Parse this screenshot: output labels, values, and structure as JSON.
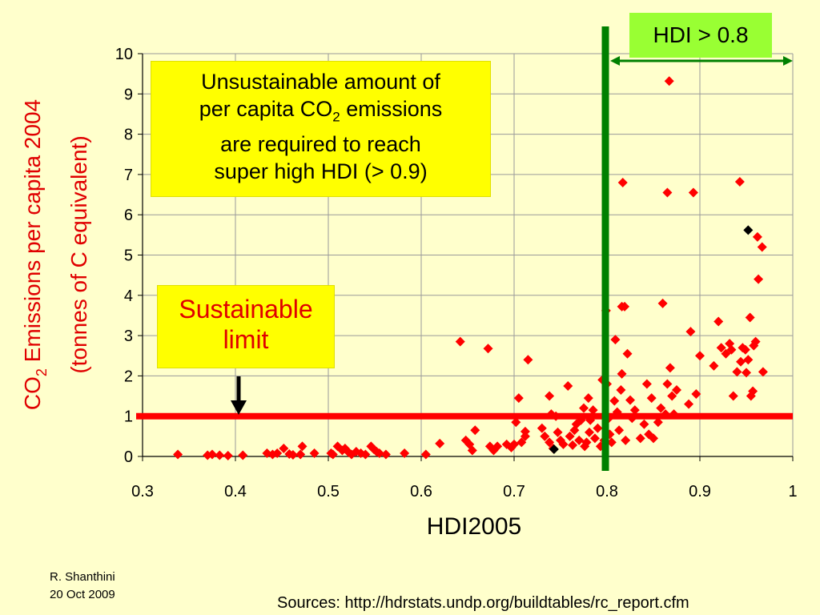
{
  "chart_data": {
    "type": "scatter",
    "title": "",
    "xlabel": "HDI2005",
    "ylabel_line1_main": "CO",
    "ylabel_line1_sub": "2",
    "ylabel_line1_rest": " Emissions per capita 2004",
    "ylabel_line2": "(tonnes of C equivalent)",
    "xlim": [
      0.3,
      1.0
    ],
    "ylim": [
      0,
      10
    ],
    "xticks": [
      "0.3",
      "0.4",
      "0.5",
      "0.6",
      "0.7",
      "0.8",
      "0.9",
      "1"
    ],
    "yticks": [
      "0",
      "1",
      "2",
      "3",
      "4",
      "5",
      "6",
      "7",
      "8",
      "9",
      "10"
    ],
    "grid": true,
    "colors": {
      "points": "#ff0000",
      "highlight": "#000000",
      "limit_line": "#ff0000",
      "hdi_line": "#008000",
      "arrow": "#008000"
    },
    "sustainable_limit": 1.0,
    "hdi_threshold": 0.8,
    "points": [
      [
        0.338,
        0.05
      ],
      [
        0.37,
        0.03
      ],
      [
        0.375,
        0.05
      ],
      [
        0.383,
        0.03
      ],
      [
        0.392,
        0.02
      ],
      [
        0.408,
        0.03
      ],
      [
        0.434,
        0.08
      ],
      [
        0.44,
        0.05
      ],
      [
        0.445,
        0.08
      ],
      [
        0.452,
        0.2
      ],
      [
        0.458,
        0.06
      ],
      [
        0.462,
        0.04
      ],
      [
        0.47,
        0.05
      ],
      [
        0.472,
        0.25
      ],
      [
        0.485,
        0.08
      ],
      [
        0.503,
        0.08
      ],
      [
        0.505,
        0.05
      ],
      [
        0.51,
        0.25
      ],
      [
        0.515,
        0.15
      ],
      [
        0.518,
        0.2
      ],
      [
        0.522,
        0.1
      ],
      [
        0.525,
        0.05
      ],
      [
        0.53,
        0.12
      ],
      [
        0.535,
        0.08
      ],
      [
        0.54,
        0.05
      ],
      [
        0.546,
        0.25
      ],
      [
        0.549,
        0.18
      ],
      [
        0.552,
        0.12
      ],
      [
        0.555,
        0.08
      ],
      [
        0.562,
        0.05
      ],
      [
        0.582,
        0.08
      ],
      [
        0.605,
        0.05
      ],
      [
        0.62,
        0.32
      ],
      [
        0.642,
        2.85
      ],
      [
        0.648,
        0.4
      ],
      [
        0.652,
        0.3
      ],
      [
        0.655,
        0.15
      ],
      [
        0.658,
        0.65
      ],
      [
        0.672,
        2.68
      ],
      [
        0.674,
        0.25
      ],
      [
        0.678,
        0.15
      ],
      [
        0.682,
        0.25
      ],
      [
        0.692,
        0.3
      ],
      [
        0.697,
        0.22
      ],
      [
        0.7,
        0.3
      ],
      [
        0.702,
        0.85
      ],
      [
        0.705,
        1.45
      ],
      [
        0.708,
        0.35
      ],
      [
        0.712,
        0.5
      ],
      [
        0.712,
        0.62
      ],
      [
        0.715,
        2.4
      ],
      [
        0.73,
        0.7
      ],
      [
        0.733,
        0.5
      ],
      [
        0.738,
        1.5
      ],
      [
        0.738,
        0.35
      ],
      [
        0.74,
        1.05
      ],
      [
        0.742,
        0.2
      ],
      [
        0.745,
        1.0
      ],
      [
        0.747,
        0.6
      ],
      [
        0.75,
        0.4
      ],
      [
        0.753,
        0.3
      ],
      [
        0.758,
        1.75
      ],
      [
        0.76,
        0.5
      ],
      [
        0.763,
        0.28
      ],
      [
        0.765,
        0.65
      ],
      [
        0.767,
        0.8
      ],
      [
        0.77,
        0.4
      ],
      [
        0.772,
        0.9
      ],
      [
        0.775,
        1.2
      ],
      [
        0.776,
        0.25
      ],
      [
        0.778,
        0.35
      ],
      [
        0.78,
        1.45
      ],
      [
        0.781,
        0.6
      ],
      [
        0.782,
        0.9
      ],
      [
        0.785,
        1.15
      ],
      [
        0.787,
        0.45
      ],
      [
        0.79,
        0.7
      ],
      [
        0.793,
        0.25
      ],
      [
        0.795,
        1.9
      ],
      [
        0.797,
        0.4
      ],
      [
        0.799,
        3.62
      ],
      [
        0.8,
        1.8
      ],
      [
        0.802,
        0.95
      ],
      [
        0.803,
        0.55
      ],
      [
        0.805,
        0.35
      ],
      [
        0.808,
        1.38
      ],
      [
        0.809,
        2.9
      ],
      [
        0.811,
        1.1
      ],
      [
        0.813,
        0.65
      ],
      [
        0.815,
        1.65
      ],
      [
        0.816,
        2.05
      ],
      [
        0.816,
        3.72
      ],
      [
        0.817,
        6.8
      ],
      [
        0.819,
        3.72
      ],
      [
        0.82,
        0.4
      ],
      [
        0.822,
        2.55
      ],
      [
        0.825,
        1.4
      ],
      [
        0.827,
        0.95
      ],
      [
        0.83,
        1.15
      ],
      [
        0.836,
        0.45
      ],
      [
        0.84,
        0.8
      ],
      [
        0.843,
        1.8
      ],
      [
        0.845,
        0.55
      ],
      [
        0.848,
        1.45
      ],
      [
        0.85,
        0.45
      ],
      [
        0.855,
        0.85
      ],
      [
        0.858,
        1.2
      ],
      [
        0.86,
        3.8
      ],
      [
        0.863,
        1.05
      ],
      [
        0.865,
        6.55
      ],
      [
        0.865,
        1.8
      ],
      [
        0.867,
        9.32
      ],
      [
        0.868,
        2.2
      ],
      [
        0.87,
        1.5
      ],
      [
        0.872,
        1.05
      ],
      [
        0.875,
        1.65
      ],
      [
        0.888,
        1.3
      ],
      [
        0.89,
        3.1
      ],
      [
        0.893,
        6.55
      ],
      [
        0.896,
        1.55
      ],
      [
        0.9,
        2.5
      ],
      [
        0.915,
        2.25
      ],
      [
        0.92,
        3.35
      ],
      [
        0.923,
        2.7
      ],
      [
        0.928,
        2.55
      ],
      [
        0.932,
        2.8
      ],
      [
        0.934,
        2.65
      ],
      [
        0.936,
        1.5
      ],
      [
        0.94,
        2.1
      ],
      [
        0.943,
        6.82
      ],
      [
        0.944,
        2.35
      ],
      [
        0.946,
        2.7
      ],
      [
        0.949,
        2.65
      ],
      [
        0.95,
        2.08
      ],
      [
        0.952,
        2.4
      ],
      [
        0.954,
        3.45
      ],
      [
        0.955,
        1.5
      ],
      [
        0.957,
        1.62
      ],
      [
        0.958,
        2.75
      ],
      [
        0.96,
        2.85
      ],
      [
        0.962,
        5.45
      ],
      [
        0.963,
        4.4
      ],
      [
        0.967,
        5.2
      ],
      [
        0.968,
        2.1
      ]
    ],
    "highlight_points": [
      [
        0.743,
        0.18
      ],
      [
        0.952,
        5.62
      ]
    ]
  },
  "annotations": {
    "unsustainable": {
      "line1": "Unsustainable amount of",
      "line2_main": "per capita CO",
      "line2_sub": "2",
      "line2_rest": " emissions",
      "line3": "are required to reach",
      "line4": "super high HDI (> 0.9)"
    },
    "sustainable": {
      "line1": "Sustainable",
      "line2": "limit"
    },
    "hdi_label": "HDI > 0.8"
  },
  "footer": {
    "author": "R. Shanthini",
    "date": "20 Oct 2009",
    "sources": "Sources: http://hdrstats.undp.org/buildtables/rc_report.cfm"
  }
}
